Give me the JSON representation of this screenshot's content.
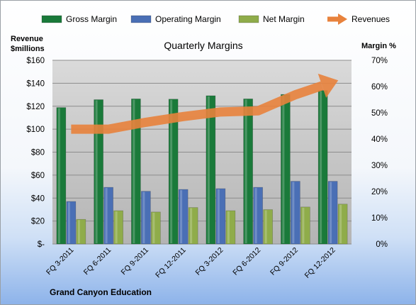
{
  "chart_data": {
    "type": "bar",
    "title": "Quarterly Margins",
    "company": "Grand Canyon Education",
    "y_left_label": [
      "Revenue",
      "$millions"
    ],
    "y_right_label": "Margin %",
    "y_left_ticks": [
      "$160",
      "$140",
      "$120",
      "$100",
      "$80",
      "$60",
      "$40",
      "$20",
      "$-"
    ],
    "y_right_ticks": [
      "70%",
      "60%",
      "50%",
      "40%",
      "30%",
      "20%",
      "10%",
      "0%"
    ],
    "y_left_lim": [
      0,
      160
    ],
    "y_right_lim": [
      0,
      70
    ],
    "categories": [
      "FQ 3-2011",
      "FQ 6-2011",
      "FQ 9-2011",
      "FQ 12-2011",
      "FQ 3-2012",
      "FQ 6-2012",
      "FQ 9-2012",
      "FQ 12-2012"
    ],
    "series": [
      {
        "name": "Gross Margin",
        "axis": "right",
        "kind": "bar",
        "color": "#1a7a3a",
        "values": [
          52,
          55,
          55.3,
          55.2,
          56.5,
          55.3,
          57,
          58.5
        ]
      },
      {
        "name": "Operating Margin",
        "axis": "right",
        "kind": "bar",
        "color": "#4a6fb5",
        "values": [
          16.2,
          21.6,
          20.1,
          20.8,
          21.1,
          21.6,
          23.9,
          23.9
        ]
      },
      {
        "name": "Net Margin",
        "axis": "right",
        "kind": "bar",
        "color": "#8fac4a",
        "values": [
          9.4,
          12.7,
          12.2,
          13.9,
          12.7,
          13.1,
          14.1,
          15.2
        ]
      },
      {
        "name": "Revenues",
        "axis": "left",
        "kind": "line",
        "color": "#e8823c",
        "values": [
          100,
          100,
          106,
          111,
          115,
          116,
          130,
          141
        ]
      }
    ],
    "grid": true,
    "legend_position": "top"
  }
}
